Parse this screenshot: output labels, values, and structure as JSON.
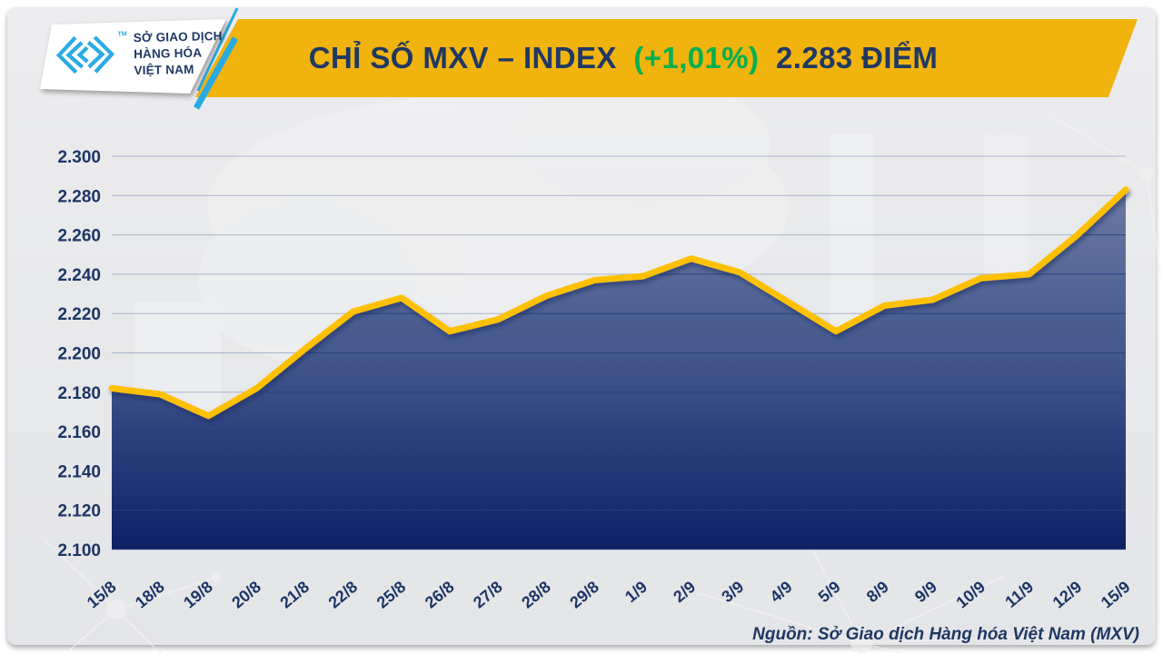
{
  "header": {
    "logo": {
      "line1": "SỞ GIAO DỊCH",
      "line2": "HÀNG HÓA",
      "line3": "VIỆT NAM",
      "tm": "TM"
    },
    "title_main": "CHỈ SỐ MXV – INDEX",
    "title_change": "(+1,01%)",
    "title_value": "2.283 ĐIỂM"
  },
  "footer": {
    "source": "Nguồn: Sở Giao dịch Hàng hóa Việt Nam (MXV)"
  },
  "colors": {
    "banner_yellow": "#F1B30E",
    "line_gold": "#FFC000",
    "navy_text": "#1F3864",
    "green_change": "#00B050",
    "logo_blue": "#29ABE2",
    "grid_light": "#a9b3c7",
    "grid_dark": "#23407f",
    "fill_top": "#6b7aa4",
    "fill_mid": "#44588d",
    "fill_bottom": "#0e2166"
  },
  "chart_data": {
    "type": "area",
    "title": "CHỈ SỐ MXV – INDEX (+1,01%) 2.283 ĐIỂM",
    "xlabel": "",
    "ylabel": "",
    "grid": true,
    "x": [
      "15/8",
      "18/8",
      "19/8",
      "20/8",
      "21/8",
      "22/8",
      "25/8",
      "26/8",
      "27/8",
      "28/8",
      "29/8",
      "1/9",
      "2/9",
      "3/9",
      "4/9",
      "5/9",
      "8/9",
      "9/9",
      "10/9",
      "11/9",
      "12/9",
      "15/9"
    ],
    "values": [
      2182,
      2179,
      2168,
      2182,
      2202,
      2221,
      2228,
      2211,
      2217,
      2229,
      2237,
      2239,
      2248,
      2241,
      2226,
      2211,
      2224,
      2227,
      2238,
      2240,
      2260,
      2283
    ],
    "ylim": [
      2100,
      2300
    ],
    "ytick_step": 20,
    "yticks": [
      {
        "value": 2300,
        "label": "2.300"
      },
      {
        "value": 2280,
        "label": "2.280"
      },
      {
        "value": 2260,
        "label": "2.260"
      },
      {
        "value": 2240,
        "label": "2.240"
      },
      {
        "value": 2220,
        "label": "2.220"
      },
      {
        "value": 2200,
        "label": "2.200"
      },
      {
        "value": 2180,
        "label": "2.180"
      },
      {
        "value": 2160,
        "label": "2.160"
      },
      {
        "value": 2140,
        "label": "2.140"
      },
      {
        "value": 2120,
        "label": "2.120"
      },
      {
        "value": 2100,
        "label": "2.100"
      }
    ]
  }
}
